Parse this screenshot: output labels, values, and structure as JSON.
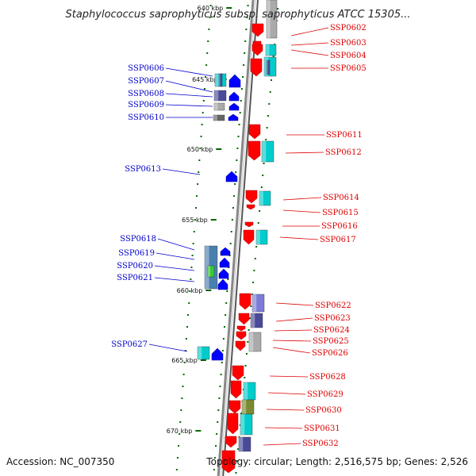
{
  "title": "Staphylococcus saprophyticus subsp. saprophyticus ATCC 15305...",
  "footer": {
    "accession": "Accession: NC_007350",
    "summary": "Topology: circular; Length: 2,516,575 bp; Genes: 2,526"
  },
  "ruler": [
    "640 kbp",
    "645 kbp",
    "650 kbp",
    "655 kbp",
    "660 kbp",
    "665 kbp",
    "670 kbp"
  ],
  "genes": {
    "minus_strand": [
      "SSP0606",
      "SSP0607",
      "SSP0608",
      "SSP0609",
      "SSP0610",
      "SSP0613",
      "SSP0618",
      "SSP0619",
      "SSP0620",
      "SSP0621",
      "SSP0627"
    ],
    "plus_strand": [
      "SSP0602",
      "SSP0603",
      "SSP0604",
      "SSP0605",
      "SSP0611",
      "SSP0612",
      "SSP0614",
      "SSP0615",
      "SSP0616",
      "SSP0617",
      "SSP0622",
      "SSP0623",
      "SSP0624",
      "SSP0625",
      "SSP0626",
      "SSP0628",
      "SSP0629",
      "SSP0630",
      "SSP0631",
      "SSP0632"
    ]
  },
  "colors": {
    "minus_label": "#0000cc",
    "plus_label": "#dd0000",
    "minus_gene": "#0000ff",
    "plus_gene": "#ff0000",
    "backbone": "#888888",
    "tick": "#006600",
    "cyan_feature": "#00cccc",
    "slate_feature": "#4a4a9a",
    "periwinkle_feature": "#7b7bd8",
    "gray_feature": "#aaaaaa",
    "olive_feature": "#7a8a30",
    "steel_feature": "#4a7fb0",
    "green_feature": "#33cc33"
  }
}
